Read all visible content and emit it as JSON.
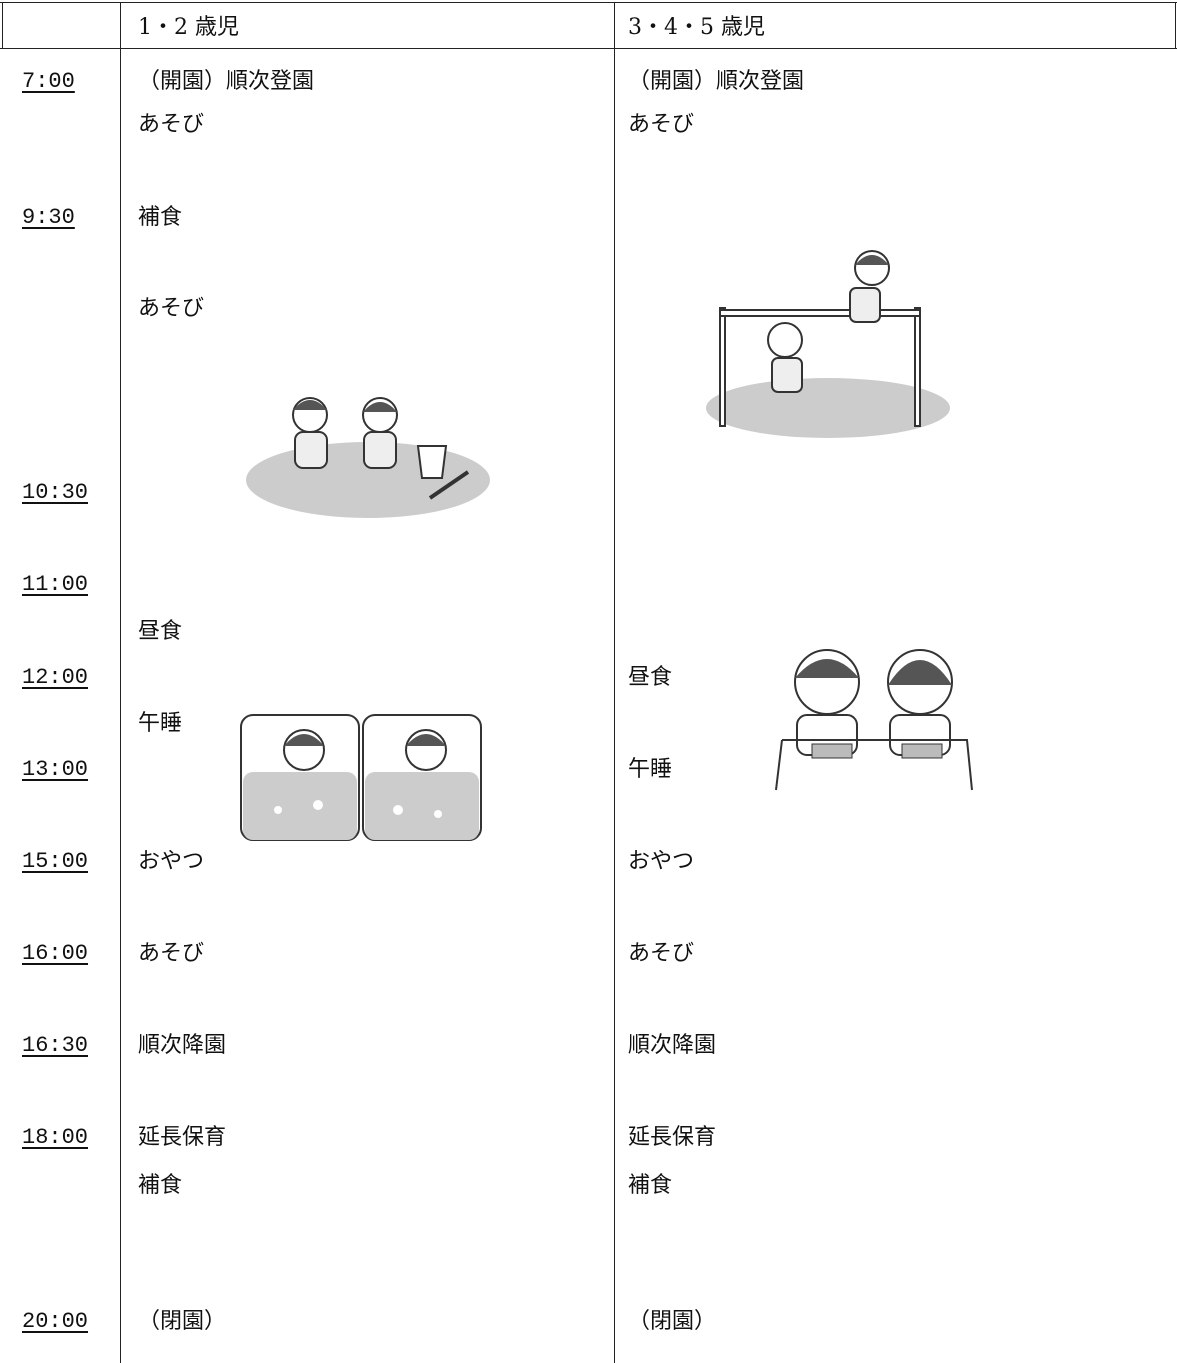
{
  "header": {
    "col1": "1・2 歳児",
    "col2": "3・4・5 歳児"
  },
  "times": [
    "7:00",
    "9:30",
    "10:30",
    "11:00",
    "12:00",
    "13:00",
    "15:00",
    "16:00",
    "16:30",
    "18:00",
    "20:00"
  ],
  "col1": [
    "（開園）順次登園",
    "あそび",
    "補食",
    "あそび",
    "昼食",
    "午睡",
    "おやつ",
    "あそび",
    "順次降園",
    "延長保育",
    "補食",
    "（閉園）"
  ],
  "col2": [
    "（開園）順次登園",
    "あそび",
    "昼食",
    "午睡",
    "おやつ",
    "あそび",
    "順次降園",
    "延長保育",
    "補食",
    "（閉園）"
  ]
}
